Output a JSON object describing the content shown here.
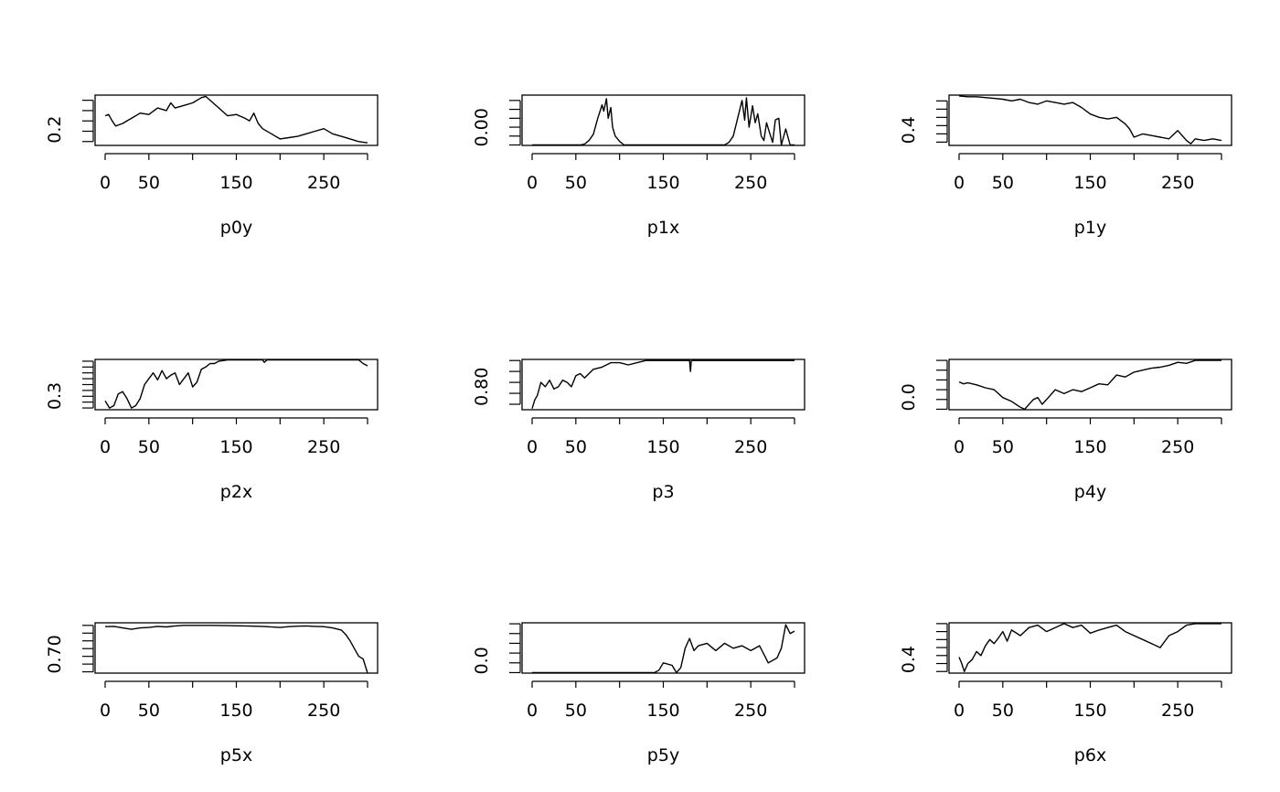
{
  "layout": "3x3 grid of trace plots",
  "x_tick_labels": [
    "0",
    "50",
    "150",
    "250"
  ],
  "chart_data": [
    {
      "type": "line",
      "xlabel": "p0y",
      "xlim": [
        0,
        300
      ],
      "ytick_label": "0.2",
      "yticks": [
        0.18,
        0.22,
        0.26,
        0.3,
        0.34
      ],
      "ylim": [
        0.165,
        0.36
      ],
      "x": [
        0,
        4,
        8,
        12,
        20,
        30,
        40,
        50,
        60,
        70,
        75,
        80,
        90,
        100,
        110,
        115,
        120,
        130,
        140,
        150,
        160,
        165,
        170,
        175,
        180,
        190,
        200,
        210,
        220,
        230,
        240,
        250,
        260,
        270,
        280,
        290,
        300
      ],
      "y": [
        0.28,
        0.285,
        0.26,
        0.24,
        0.25,
        0.27,
        0.29,
        0.285,
        0.31,
        0.3,
        0.33,
        0.31,
        0.32,
        0.33,
        0.35,
        0.355,
        0.34,
        0.31,
        0.28,
        0.285,
        0.27,
        0.26,
        0.29,
        0.25,
        0.23,
        0.21,
        0.19,
        0.195,
        0.2,
        0.21,
        0.22,
        0.23,
        0.21,
        0.2,
        0.19,
        0.18,
        0.175
      ]
    },
    {
      "type": "line",
      "xlabel": "p1x",
      "xlim": [
        0,
        300
      ],
      "ytick_label": "0.00",
      "yticks": [
        0,
        0.1,
        0.2,
        0.3,
        0.4,
        0.5
      ],
      "ylim": [
        -0.005,
        0.56
      ],
      "x": [
        0,
        55,
        60,
        65,
        70,
        75,
        80,
        82,
        85,
        87,
        90,
        92,
        95,
        100,
        105,
        110,
        220,
        225,
        230,
        235,
        240,
        243,
        245,
        248,
        252,
        255,
        258,
        262,
        265,
        268,
        272,
        275,
        278,
        282,
        285,
        290,
        295,
        300
      ],
      "y": [
        0,
        0,
        0.01,
        0.05,
        0.12,
        0.3,
        0.45,
        0.38,
        0.52,
        0.3,
        0.42,
        0.2,
        0.1,
        0.04,
        0.0,
        0,
        0,
        0.03,
        0.1,
        0.3,
        0.5,
        0.28,
        0.53,
        0.2,
        0.44,
        0.25,
        0.35,
        0.1,
        0.05,
        0.25,
        0.12,
        0.03,
        0.28,
        0.3,
        0.0,
        0.18,
        0.0,
        0
      ]
    },
    {
      "type": "line",
      "xlabel": "p1y",
      "xlim": [
        0,
        300
      ],
      "ytick_label": "0.4",
      "yticks": [
        0.35,
        0.4,
        0.45,
        0.5,
        0.55,
        0.6
      ],
      "ylim": [
        0.33,
        0.635
      ],
      "x": [
        0,
        10,
        20,
        30,
        40,
        50,
        60,
        70,
        80,
        90,
        100,
        110,
        120,
        130,
        140,
        150,
        160,
        170,
        180,
        190,
        195,
        200,
        210,
        220,
        230,
        240,
        250,
        260,
        265,
        270,
        280,
        290,
        300
      ],
      "y": [
        0.63,
        0.625,
        0.625,
        0.62,
        0.615,
        0.61,
        0.6,
        0.61,
        0.59,
        0.58,
        0.6,
        0.59,
        0.58,
        0.59,
        0.56,
        0.52,
        0.5,
        0.49,
        0.5,
        0.46,
        0.43,
        0.38,
        0.4,
        0.39,
        0.38,
        0.37,
        0.42,
        0.36,
        0.34,
        0.37,
        0.36,
        0.37,
        0.36
      ]
    },
    {
      "type": "line",
      "xlabel": "p2x",
      "xlim": [
        0,
        300
      ],
      "ytick_label": "0.3",
      "yticks": [
        0.3,
        0.35,
        0.4,
        0.45,
        0.5,
        0.55,
        0.6,
        0.65,
        0.7
      ],
      "ylim": [
        0.285,
        0.715
      ],
      "x": [
        0,
        5,
        10,
        15,
        20,
        25,
        30,
        35,
        40,
        45,
        50,
        55,
        60,
        65,
        70,
        75,
        80,
        85,
        90,
        95,
        100,
        105,
        110,
        115,
        120,
        125,
        130,
        140,
        150,
        180,
        182,
        185,
        200,
        250,
        290,
        295,
        300
      ],
      "y": [
        0.36,
        0.3,
        0.32,
        0.42,
        0.44,
        0.38,
        0.3,
        0.32,
        0.38,
        0.5,
        0.55,
        0.6,
        0.54,
        0.62,
        0.55,
        0.58,
        0.6,
        0.5,
        0.55,
        0.6,
        0.48,
        0.52,
        0.63,
        0.65,
        0.68,
        0.68,
        0.7,
        0.71,
        0.71,
        0.71,
        0.69,
        0.71,
        0.71,
        0.71,
        0.71,
        0.68,
        0.66
      ]
    },
    {
      "type": "line",
      "xlabel": "p3",
      "xlim": [
        0,
        300
      ],
      "ytick_label": "0.80",
      "yticks": [
        0.8,
        0.85,
        0.9,
        0.95,
        1.0
      ],
      "ylim": [
        0.775,
        1.005
      ],
      "x": [
        0,
        3,
        6,
        10,
        15,
        20,
        25,
        30,
        35,
        40,
        45,
        50,
        55,
        60,
        70,
        80,
        90,
        100,
        110,
        120,
        130,
        140,
        150,
        180,
        181,
        182,
        185,
        200,
        250,
        300
      ],
      "y": [
        0.78,
        0.82,
        0.84,
        0.9,
        0.88,
        0.91,
        0.87,
        0.88,
        0.91,
        0.9,
        0.88,
        0.93,
        0.94,
        0.92,
        0.96,
        0.97,
        0.99,
        0.99,
        0.98,
        0.99,
        1.0,
        1.0,
        1.0,
        1.0,
        0.95,
        1.0,
        1.0,
        1.0,
        1.0,
        1.0
      ]
    },
    {
      "type": "line",
      "xlabel": "p4y",
      "xlim": [
        0,
        300
      ],
      "ytick_label": "0.0",
      "yticks": [
        0,
        0.1,
        0.2,
        0.3,
        0.4,
        0.5
      ],
      "ylim": [
        -0.005,
        0.51
      ],
      "x": [
        0,
        5,
        10,
        20,
        30,
        40,
        50,
        60,
        70,
        75,
        80,
        85,
        90,
        95,
        100,
        110,
        120,
        130,
        140,
        150,
        160,
        170,
        180,
        190,
        200,
        210,
        220,
        230,
        240,
        250,
        260,
        270,
        280,
        290,
        300
      ],
      "y": [
        0.28,
        0.26,
        0.27,
        0.25,
        0.22,
        0.2,
        0.12,
        0.08,
        0.02,
        0.0,
        0.05,
        0.1,
        0.12,
        0.05,
        0.1,
        0.2,
        0.16,
        0.2,
        0.18,
        0.22,
        0.26,
        0.25,
        0.35,
        0.33,
        0.38,
        0.4,
        0.42,
        0.43,
        0.45,
        0.48,
        0.47,
        0.5,
        0.5,
        0.5,
        0.5
      ]
    },
    {
      "type": "line",
      "xlabel": "p5x",
      "xlim": [
        0,
        300
      ],
      "ytick_label": "0.70",
      "yticks": [
        0.7,
        0.73,
        0.76,
        0.79,
        0.82,
        0.85,
        0.88
      ],
      "ylim": [
        0.695,
        0.89
      ],
      "x": [
        0,
        10,
        20,
        30,
        40,
        50,
        60,
        70,
        80,
        90,
        100,
        120,
        140,
        160,
        180,
        200,
        210,
        220,
        230,
        240,
        250,
        260,
        270,
        275,
        280,
        285,
        290,
        295,
        300
      ],
      "y": [
        0.875,
        0.876,
        0.87,
        0.865,
        0.87,
        0.872,
        0.876,
        0.874,
        0.878,
        0.88,
        0.88,
        0.88,
        0.879,
        0.878,
        0.876,
        0.872,
        0.875,
        0.877,
        0.878,
        0.876,
        0.875,
        0.87,
        0.862,
        0.845,
        0.82,
        0.79,
        0.76,
        0.75,
        0.695
      ]
    },
    {
      "type": "line",
      "xlabel": "p5y",
      "xlim": [
        0,
        300
      ],
      "ytick_label": "0.0",
      "yticks": [
        0,
        0.2,
        0.4,
        0.6,
        0.8,
        1.0
      ],
      "ylim": [
        -0.01,
        1.02
      ],
      "x": [
        0,
        140,
        145,
        150,
        160,
        165,
        170,
        175,
        180,
        185,
        190,
        200,
        210,
        220,
        230,
        240,
        250,
        260,
        270,
        280,
        285,
        290,
        295,
        300
      ],
      "y": [
        0,
        0,
        0.05,
        0.2,
        0.15,
        0.0,
        0.1,
        0.5,
        0.7,
        0.45,
        0.55,
        0.6,
        0.45,
        0.6,
        0.5,
        0.55,
        0.45,
        0.55,
        0.2,
        0.3,
        0.5,
        0.98,
        0.8,
        0.85
      ]
    },
    {
      "type": "line",
      "xlabel": "p6x",
      "xlim": [
        0,
        300
      ],
      "ytick_label": "0.4",
      "yticks": [
        0.4,
        0.5,
        0.6,
        0.7,
        0.8,
        0.9,
        1.0
      ],
      "ylim": [
        0.38,
        1.01
      ],
      "x": [
        0,
        3,
        6,
        10,
        15,
        20,
        25,
        30,
        35,
        40,
        45,
        50,
        55,
        60,
        70,
        80,
        90,
        100,
        110,
        120,
        130,
        140,
        150,
        160,
        170,
        180,
        190,
        200,
        210,
        220,
        230,
        240,
        250,
        260,
        270,
        280,
        300
      ],
      "y": [
        0.58,
        0.5,
        0.4,
        0.5,
        0.55,
        0.65,
        0.6,
        0.72,
        0.8,
        0.75,
        0.82,
        0.9,
        0.78,
        0.92,
        0.85,
        0.95,
        0.98,
        0.9,
        0.95,
        1.0,
        0.95,
        0.98,
        0.88,
        0.92,
        0.95,
        0.98,
        0.9,
        0.85,
        0.8,
        0.75,
        0.7,
        0.85,
        0.9,
        0.98,
        1.0,
        1.0,
        1.0
      ]
    }
  ]
}
